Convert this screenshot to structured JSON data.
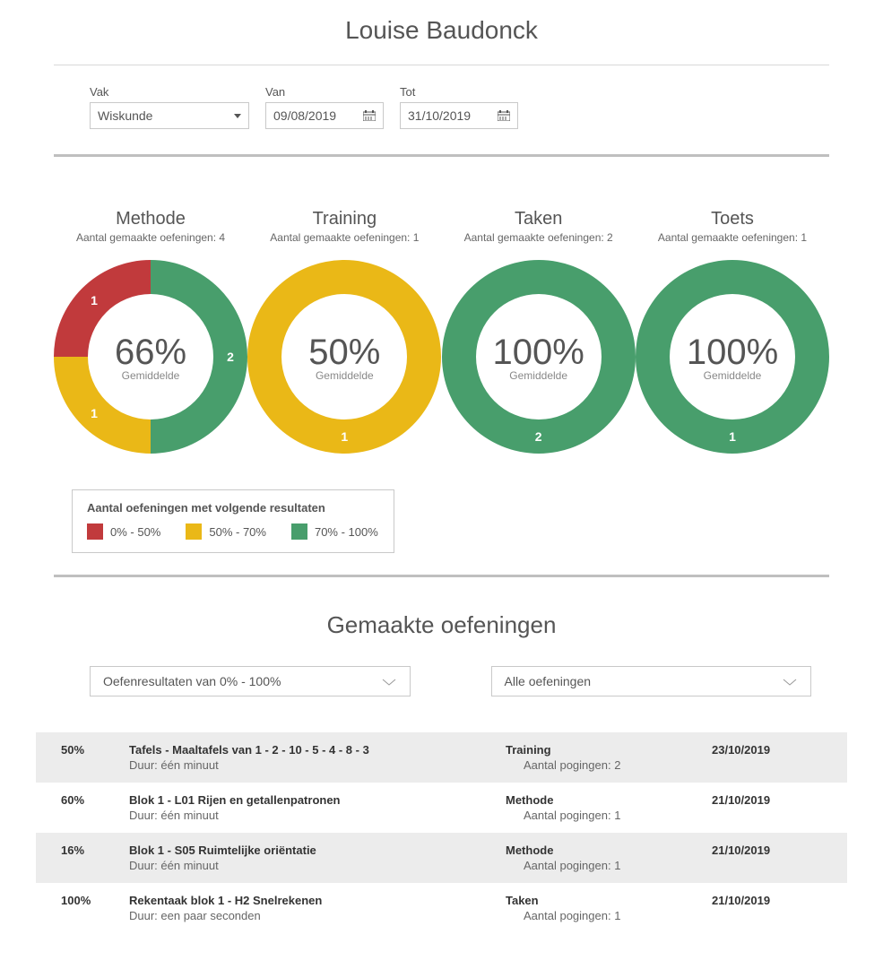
{
  "colors": {
    "red": "#c13a3c",
    "yellow": "#eab817",
    "green": "#489e6c",
    "text": "#555555",
    "text_dark": "#333333",
    "border": "#c9c9c9",
    "row_alt": "#ececec",
    "background": "#ffffff"
  },
  "header": {
    "name": "Louise Baudonck"
  },
  "filters": {
    "subject_label": "Vak",
    "subject_value": "Wiskunde",
    "from_label": "Van",
    "from_value": "09/08/2019",
    "to_label": "Tot",
    "to_value": "31/10/2019"
  },
  "donuts": [
    {
      "title": "Methode",
      "subtitle": "Aantal gemaakte oefeningen: 4",
      "center_pct": "66%",
      "center_label": "Gemiddelde",
      "slices": [
        {
          "color_key": "green",
          "value": 2,
          "start_deg": 0,
          "end_deg": 180,
          "label_deg": 90
        },
        {
          "color_key": "yellow",
          "value": 1,
          "start_deg": 180,
          "end_deg": 270,
          "label_deg": 225
        },
        {
          "color_key": "red",
          "value": 1,
          "start_deg": 270,
          "end_deg": 360,
          "label_deg": 315
        }
      ]
    },
    {
      "title": "Training",
      "subtitle": "Aantal gemaakte oefeningen: 1",
      "center_pct": "50%",
      "center_label": "Gemiddelde",
      "slices": [
        {
          "color_key": "yellow",
          "value": 1,
          "start_deg": 0,
          "end_deg": 360,
          "label_deg": 180
        }
      ]
    },
    {
      "title": "Taken",
      "subtitle": "Aantal gemaakte oefeningen: 2",
      "center_pct": "100%",
      "center_label": "Gemiddelde",
      "slices": [
        {
          "color_key": "green",
          "value": 2,
          "start_deg": 0,
          "end_deg": 360,
          "label_deg": 180
        }
      ]
    },
    {
      "title": "Toets",
      "subtitle": "Aantal gemaakte oefeningen: 1",
      "center_pct": "100%",
      "center_label": "Gemiddelde",
      "slices": [
        {
          "color_key": "green",
          "value": 1,
          "start_deg": 0,
          "end_deg": 360,
          "label_deg": 180
        }
      ]
    }
  ],
  "donut_geom": {
    "size": 216,
    "outer_r": 108,
    "inner_r": 70,
    "label_r": 89
  },
  "legend": {
    "title": "Aantal oefeningen met volgende resultaten",
    "items": [
      {
        "color_key": "red",
        "label": "0% - 50%"
      },
      {
        "color_key": "yellow",
        "label": "50% - 70%"
      },
      {
        "color_key": "green",
        "label": "70% - 100%"
      }
    ]
  },
  "exercises": {
    "heading": "Gemaakte oefeningen",
    "filter1": "Oefenresultaten van 0% - 100%",
    "filter2": "Alle oefeningen",
    "duration_prefix": "Duur: ",
    "attempts_prefix": "Aantal pogingen: ",
    "rows": [
      {
        "pct": "50%",
        "title": "Tafels - Maaltafels van 1 - 2 - 10 - 5 - 4 - 8 - 3",
        "duration": "één minuut",
        "category": "Training",
        "attempts": 2,
        "date": "23/10/2019"
      },
      {
        "pct": "60%",
        "title": "Blok 1 - L01 Rijen en getallenpatronen",
        "duration": "één minuut",
        "category": "Methode",
        "attempts": 1,
        "date": "21/10/2019"
      },
      {
        "pct": "16%",
        "title": "Blok 1 - S05 Ruimtelijke oriëntatie",
        "duration": "één minuut",
        "category": "Methode",
        "attempts": 1,
        "date": "21/10/2019"
      },
      {
        "pct": "100%",
        "title": "Rekentaak blok 1 - H2 Snelrekenen",
        "duration": "een paar seconden",
        "category": "Taken",
        "attempts": 1,
        "date": "21/10/2019"
      }
    ]
  }
}
